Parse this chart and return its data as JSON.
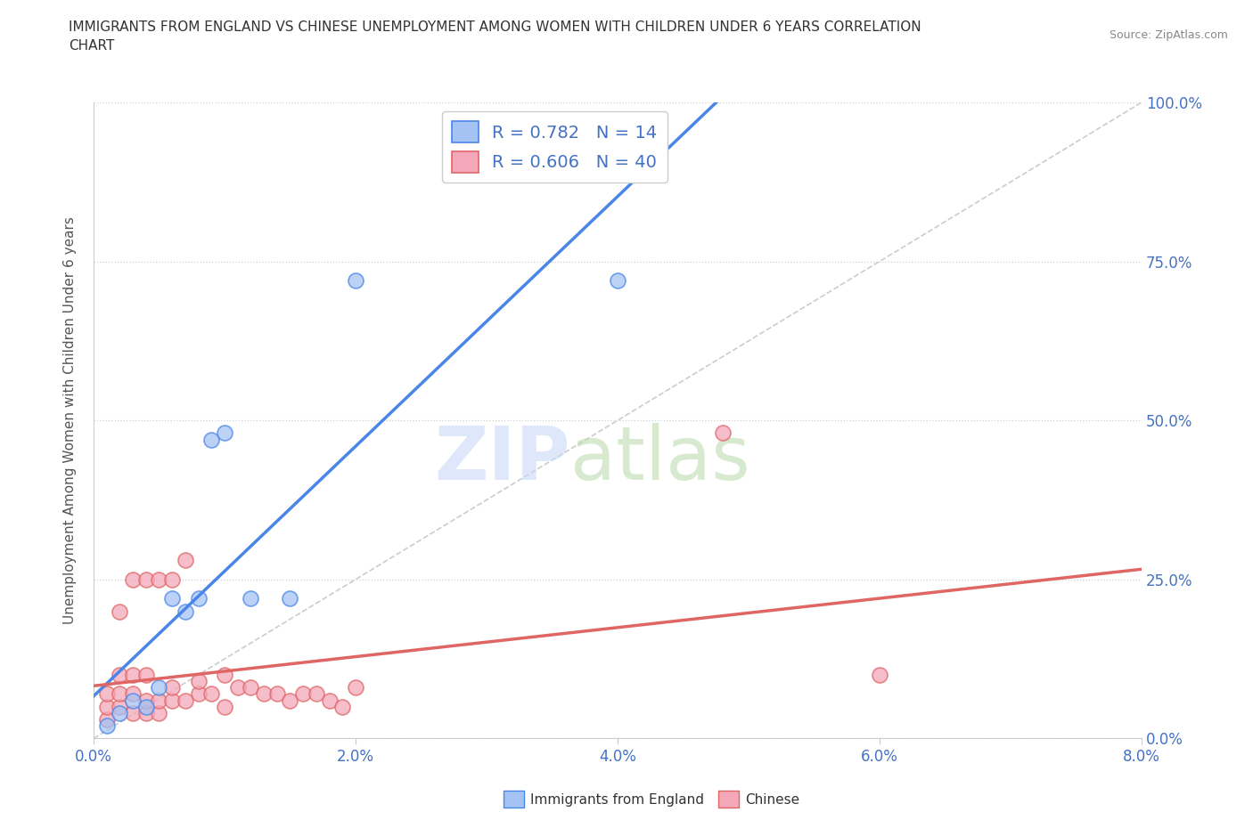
{
  "title": "IMMIGRANTS FROM ENGLAND VS CHINESE UNEMPLOYMENT AMONG WOMEN WITH CHILDREN UNDER 6 YEARS CORRELATION\nCHART",
  "source": "Source: ZipAtlas.com",
  "ylabel": "Unemployment Among Women with Children Under 6 years",
  "xlim": [
    0.0,
    0.08
  ],
  "ylim": [
    0.0,
    1.0
  ],
  "xticks": [
    0.0,
    0.02,
    0.04,
    0.06,
    0.08
  ],
  "yticks": [
    0.0,
    0.25,
    0.5,
    0.75,
    1.0
  ],
  "xticklabels": [
    "0.0%",
    "2.0%",
    "4.0%",
    "6.0%",
    "8.0%"
  ],
  "yticklabels_left": [
    "",
    "",
    "",
    "",
    ""
  ],
  "yticklabels_right": [
    "0.0%",
    "25.0%",
    "50.0%",
    "75.0%",
    "100.0%"
  ],
  "england_color": "#a4c2f4",
  "chinese_color": "#f4a7b9",
  "england_edge_color": "#4a86e8",
  "chinese_edge_color": "#e06666",
  "england_line_color": "#4a86e8",
  "chinese_line_color": "#e06666",
  "england_R": 0.782,
  "england_N": 14,
  "chinese_R": 0.606,
  "chinese_N": 40,
  "watermark_zip": "ZIP",
  "watermark_atlas": "atlas",
  "england_scatter_x": [
    0.001,
    0.002,
    0.003,
    0.004,
    0.005,
    0.006,
    0.007,
    0.008,
    0.009,
    0.01,
    0.012,
    0.015,
    0.02,
    0.04
  ],
  "england_scatter_y": [
    0.02,
    0.04,
    0.06,
    0.05,
    0.08,
    0.22,
    0.2,
    0.22,
    0.47,
    0.48,
    0.22,
    0.22,
    0.72,
    0.72
  ],
  "chinese_scatter_x": [
    0.001,
    0.001,
    0.001,
    0.002,
    0.002,
    0.002,
    0.002,
    0.003,
    0.003,
    0.003,
    0.003,
    0.004,
    0.004,
    0.004,
    0.004,
    0.005,
    0.005,
    0.005,
    0.006,
    0.006,
    0.006,
    0.007,
    0.007,
    0.008,
    0.008,
    0.009,
    0.01,
    0.01,
    0.011,
    0.012,
    0.013,
    0.014,
    0.015,
    0.016,
    0.017,
    0.018,
    0.019,
    0.02,
    0.048,
    0.06
  ],
  "chinese_scatter_y": [
    0.03,
    0.05,
    0.07,
    0.05,
    0.07,
    0.1,
    0.2,
    0.04,
    0.07,
    0.1,
    0.25,
    0.04,
    0.06,
    0.1,
    0.25,
    0.04,
    0.06,
    0.25,
    0.06,
    0.08,
    0.25,
    0.06,
    0.28,
    0.07,
    0.09,
    0.07,
    0.05,
    0.1,
    0.08,
    0.08,
    0.07,
    0.07,
    0.06,
    0.07,
    0.07,
    0.06,
    0.05,
    0.08,
    0.48,
    0.1
  ],
  "ref_line_x": [
    0.0,
    0.08
  ],
  "ref_line_y": [
    0.0,
    1.0
  ]
}
